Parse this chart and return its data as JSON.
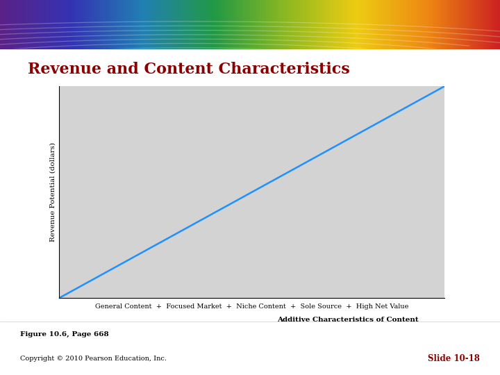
{
  "title": "Revenue and Content Characteristics",
  "title_color": "#8B0000",
  "title_fontsize": 16,
  "ylabel": "Revenue Potential (dollars)",
  "xlabel_line1": "General Content  +  Focused Market  +  Niche Content  +  Sole Source  +  High Net Value",
  "xlabel_line2": "Additive Characteristics of Content",
  "line_color": "#1E90FF",
  "line_width": 1.8,
  "plot_bg_color": "#D3D3D3",
  "fig_bg_color": "#FFFFFF",
  "figure_caption": "Figure 10.6, Page 668",
  "copyright_text": "Copyright © 2010 Pearson Education, Inc.",
  "slide_text": "Slide 10-18",
  "slide_color": "#8B0000",
  "rainbow_segments": [
    "#5B2080",
    "#3333AA",
    "#2277BB",
    "#228844",
    "#88BB22",
    "#DDCC11",
    "#EE8811",
    "#CC2222"
  ]
}
